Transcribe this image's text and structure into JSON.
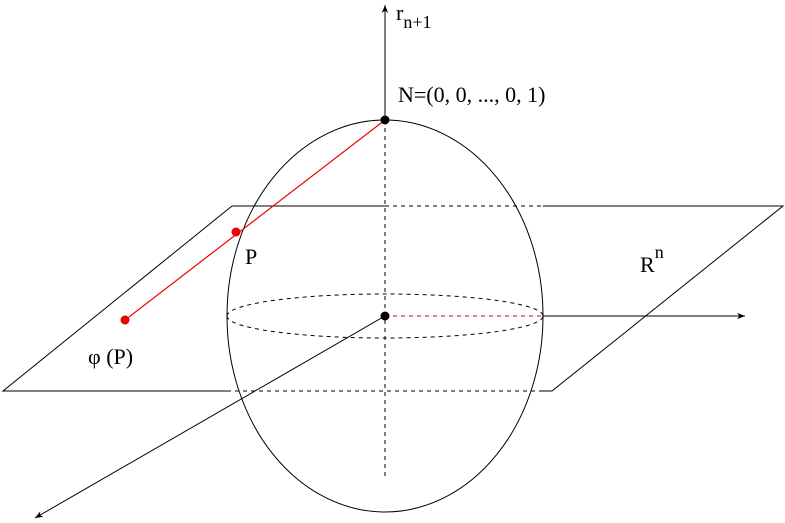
{
  "axis_label": {
    "base": "r",
    "subscript": "n+1"
  },
  "north_label": "N=(0, 0,  ..., 0, 1)",
  "point_label": "P",
  "plane_label": {
    "base": "R",
    "superscript": "n"
  },
  "projection_label": "φ (P)"
}
